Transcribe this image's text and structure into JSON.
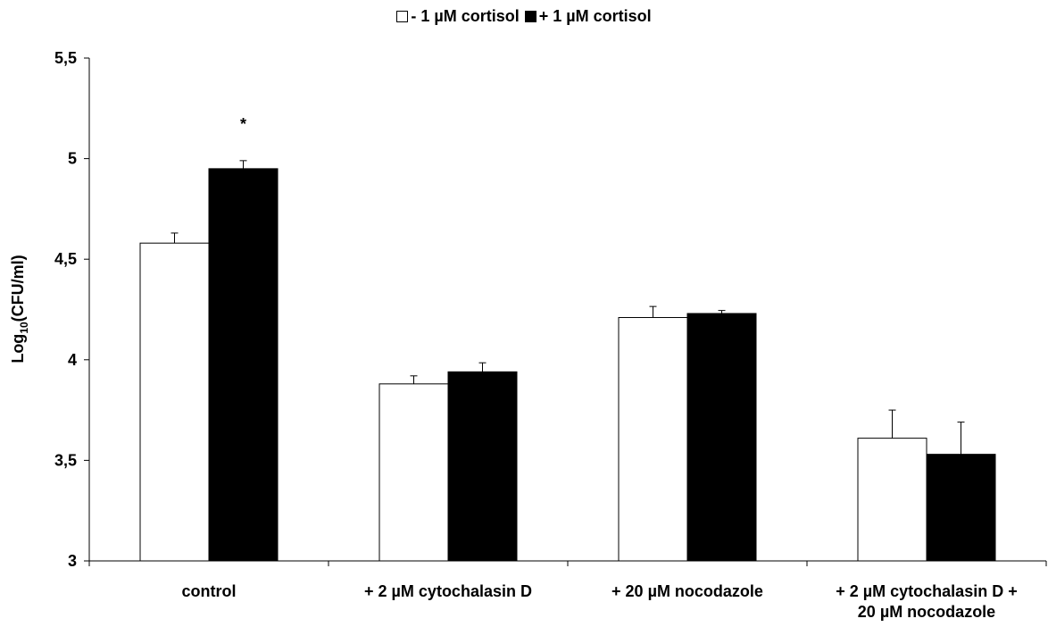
{
  "chart_data": {
    "type": "bar",
    "categories": [
      [
        "control"
      ],
      [
        "+ 2 µM cytochalasin D"
      ],
      [
        "+ 20 µM nocodazole"
      ],
      [
        "+ 2 µM cytochalasin D +",
        "20 µM nocodazole"
      ]
    ],
    "series": [
      {
        "name": "- 1 µM cortisol",
        "values": [
          4.58,
          3.88,
          4.21,
          3.61
        ],
        "errors": [
          0.05,
          0.04,
          0.055,
          0.14
        ],
        "color": "#ffffff"
      },
      {
        "name": "+ 1 µM cortisol",
        "values": [
          4.95,
          3.94,
          4.23,
          3.53
        ],
        "errors": [
          0.04,
          0.045,
          0.015,
          0.16
        ],
        "color": "#000000"
      }
    ],
    "annotations": [
      {
        "category_index": 0,
        "series_index": 1,
        "text": "*"
      }
    ],
    "ylabel_main": "Log",
    "ylabel_sub": "10",
    "ylabel_rest": "(CFU/ml)",
    "xlabel": "",
    "ylim": [
      3,
      5.5
    ],
    "yticks": [
      3,
      3.5,
      4,
      4.5,
      5,
      5.5
    ],
    "ytick_labels": [
      "3",
      "3,5",
      "4",
      "4,5",
      "5",
      "5,5"
    ],
    "grid": false,
    "legend_position": "top-center"
  }
}
